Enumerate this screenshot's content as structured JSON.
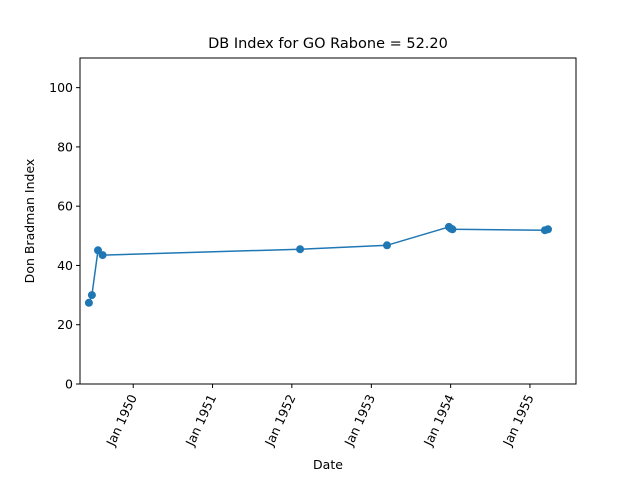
{
  "chart_data": {
    "type": "line",
    "title": "DB Index for GO Rabone = 52.20",
    "xlabel": "Date",
    "ylabel": "Don Bradman Index",
    "xlim": [
      "1949-05-01",
      "1955-08-01"
    ],
    "ylim": [
      0,
      110
    ],
    "x_ticks": [
      {
        "date": "1950-01-01",
        "label": "Jan 1950"
      },
      {
        "date": "1951-01-01",
        "label": "Jan 1951"
      },
      {
        "date": "1952-01-01",
        "label": "Jan 1952"
      },
      {
        "date": "1953-01-01",
        "label": "Jan 1953"
      },
      {
        "date": "1954-01-01",
        "label": "Jan 1954"
      },
      {
        "date": "1955-01-01",
        "label": "Jan 1955"
      }
    ],
    "y_ticks": [
      0,
      20,
      40,
      60,
      80,
      100
    ],
    "grid": false,
    "series": [
      {
        "color": "#1f77b4",
        "x": [
          "1949-06-11",
          "1949-06-25",
          "1949-07-23",
          "1949-08-13",
          "1952-02-08",
          "1953-03-14",
          "1953-12-24",
          "1954-01-01",
          "1954-01-09",
          "1955-03-11",
          "1955-03-25"
        ],
        "y": [
          27.4,
          30.0,
          45.1,
          43.5,
          45.5,
          46.8,
          53.0,
          52.5,
          52.2,
          51.9,
          52.2
        ]
      }
    ]
  }
}
